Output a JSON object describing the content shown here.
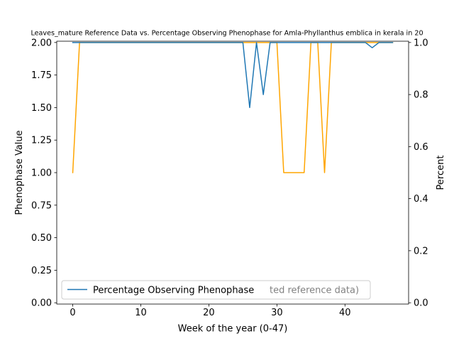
{
  "chart_data": {
    "type": "line",
    "title": "Leaves_mature Reference Data vs. Percentage Observing Phenophase for Amla-Phyllanthus emblica in kerala in 20",
    "xlabel": "Week of the year (0-47)",
    "ylabel_left": "Phenophase Value",
    "ylabel_right": "Percent",
    "xlim": [
      -2.35,
      49.35
    ],
    "ylim_left": [
      -0.01,
      2.01
    ],
    "ylim_right": [
      -0.005,
      1.005
    ],
    "x_ticks": [
      0,
      10,
      20,
      30,
      40
    ],
    "y_ticks_left": [
      "0.00",
      "0.25",
      "0.50",
      "0.75",
      "1.00",
      "1.25",
      "1.50",
      "1.75",
      "2.00"
    ],
    "y_ticks_right": [
      "0.0",
      "0.2",
      "0.4",
      "0.6",
      "0.8",
      "1.0"
    ],
    "legend_location": "lower-left",
    "grid": false,
    "series": [
      {
        "name": "",
        "axis": "left",
        "color": "#ffa500",
        "x": [
          0,
          1,
          2,
          3,
          4,
          5,
          6,
          7,
          8,
          9,
          10,
          11,
          12,
          13,
          14,
          15,
          16,
          17,
          18,
          19,
          20,
          21,
          22,
          23,
          24,
          25,
          26,
          27,
          28,
          29,
          30,
          31,
          32,
          33,
          34,
          35,
          36,
          37,
          38,
          39,
          40,
          41,
          42,
          43,
          44,
          45,
          46,
          47
        ],
        "y": [
          1,
          2,
          2,
          2,
          2,
          2,
          2,
          2,
          2,
          2,
          2,
          2,
          2,
          2,
          2,
          2,
          2,
          2,
          2,
          2,
          2,
          2,
          2,
          2,
          2,
          2,
          2,
          2,
          2,
          2,
          2,
          1,
          1,
          1,
          1,
          2,
          2,
          1,
          2,
          2,
          2,
          2,
          2,
          2,
          2,
          2,
          2,
          2
        ]
      },
      {
        "name": "Percentage Observing Phenophase",
        "axis": "right",
        "color": "#1f77b4",
        "x": [
          0,
          1,
          2,
          3,
          4,
          5,
          6,
          7,
          8,
          9,
          10,
          11,
          12,
          13,
          14,
          15,
          16,
          17,
          18,
          19,
          20,
          21,
          22,
          23,
          24,
          25,
          26,
          27,
          28,
          29,
          30,
          31,
          32,
          33,
          34,
          35,
          36,
          37,
          38,
          39,
          40,
          41,
          42,
          43,
          44,
          45,
          46,
          47
        ],
        "y": [
          1,
          1,
          1,
          1,
          1,
          1,
          1,
          1,
          1,
          1,
          1,
          1,
          1,
          1,
          1,
          1,
          1,
          1,
          1,
          1,
          1,
          1,
          1,
          1,
          1,
          1,
          0.75,
          1,
          0.8,
          1,
          1,
          1,
          1,
          1,
          1,
          1,
          1,
          1,
          1,
          1,
          1,
          1,
          1,
          1,
          0.98,
          1,
          1,
          1
        ]
      }
    ],
    "legend_text": "Percentage Observing Phenophase",
    "legend_hidden_text": "ted reference data)"
  }
}
